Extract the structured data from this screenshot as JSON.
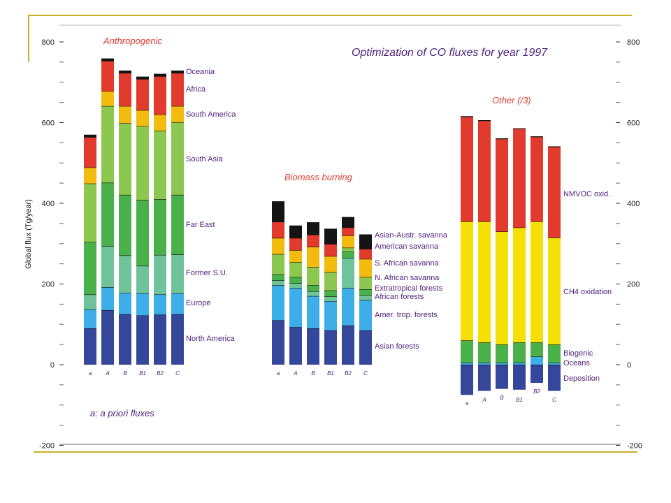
{
  "chart_data": {
    "type": "bar",
    "title": "Optimization of CO fluxes for year 1997",
    "ylabel": "Global flux (Tg/year)",
    "ylim": [
      -200,
      800
    ],
    "yticks": [
      "800",
      "600",
      "400",
      "200",
      "0",
      "-200"
    ],
    "footnote": "a: a priori fluxes",
    "grid": false,
    "groups": [
      {
        "title": "Anthropogenic",
        "scenarios": [
          "a",
          "A",
          "B",
          "B1",
          "B2",
          "C"
        ],
        "segments": [
          {
            "name": "North America",
            "color": "#34479a",
            "values": [
              90,
              135,
              125,
              122,
              124,
              125
            ]
          },
          {
            "name": "Europe",
            "color": "#3eaee8",
            "values": [
              47,
              57,
              53,
              55,
              50,
              52
            ]
          },
          {
            "name": "Former S.U.",
            "color": "#6ec39a",
            "values": [
              37,
              102,
              93,
              68,
              98,
              96
            ]
          },
          {
            "name": "Far East",
            "color": "#4ab04a",
            "values": [
              130,
              157,
              150,
              163,
              138,
              148
            ]
          },
          {
            "name": "South Asia",
            "color": "#8cc84f",
            "values": [
              145,
              190,
              178,
              183,
              170,
              180
            ]
          },
          {
            "name": "South America",
            "color": "#f2bb0e",
            "values": [
              40,
              37,
              42,
              40,
              40,
              40
            ]
          },
          {
            "name": "Africa",
            "color": "#e23b2d",
            "values": [
              75,
              75,
              82,
              77,
              95,
              82
            ]
          },
          {
            "name": "Oceania",
            "color": "#141414",
            "values": [
              5,
              5,
              5,
              5,
              5,
              5
            ]
          }
        ]
      },
      {
        "title": "Biomass burning",
        "scenarios": [
          "a",
          "A",
          "B",
          "B1",
          "B2",
          "C"
        ],
        "segments": [
          {
            "name": "Asian forests",
            "color": "#34479a",
            "values": [
              110,
              93,
              90,
              85,
              97,
              85
            ]
          },
          {
            "name": "Amer. trop. forests",
            "color": "#3eaee8",
            "values": [
              87,
              97,
              80,
              72,
              93,
              75
            ]
          },
          {
            "name": "African forests",
            "color": "#6ec39a",
            "values": [
              12,
              12,
              12,
              12,
              75,
              12
            ]
          },
          {
            "name": "Extratropical forests",
            "color": "#4ab04a",
            "values": [
              15,
              15,
              15,
              15,
              15,
              15
            ]
          },
          {
            "name": "N. African savanna",
            "color": "#8cc84f",
            "values": [
              50,
              37,
              45,
              45,
              10,
              30
            ]
          },
          {
            "name": "S. African savanna",
            "color": "#f2bb0e",
            "values": [
              40,
              30,
              50,
              40,
              30,
              45
            ]
          },
          {
            "name": "American savanna",
            "color": "#e23b2d",
            "values": [
              40,
              30,
              30,
              30,
              20,
              25
            ]
          },
          {
            "name": "Asian-Austr. savanna",
            "color": "#141414",
            "values": [
              50,
              30,
              30,
              37,
              25,
              35
            ]
          }
        ]
      },
      {
        "title": "Other (/3)",
        "scenarios": [
          "a",
          "A",
          "B",
          "B1",
          "B2",
          "C"
        ],
        "segments": [
          {
            "name": "Deposition",
            "color": "#34479a",
            "values": [
              -75,
              -65,
              -60,
              -62,
              -45,
              -65
            ]
          },
          {
            "name": "Oceans",
            "color": "#3eaee8",
            "values": [
              5,
              5,
              5,
              5,
              20,
              5
            ]
          },
          {
            "name": "Biogenic",
            "color": "#4ab04a",
            "values": [
              55,
              50,
              45,
              50,
              35,
              45
            ]
          },
          {
            "name": "CH4 oxidation",
            "color": "#f5e006",
            "values": [
              295,
              300,
              280,
              285,
              300,
              265
            ]
          },
          {
            "name": "NMVOC oxid.",
            "color": "#e23b2d",
            "values": [
              260,
              250,
              230,
              245,
              210,
              225
            ]
          }
        ]
      }
    ]
  }
}
